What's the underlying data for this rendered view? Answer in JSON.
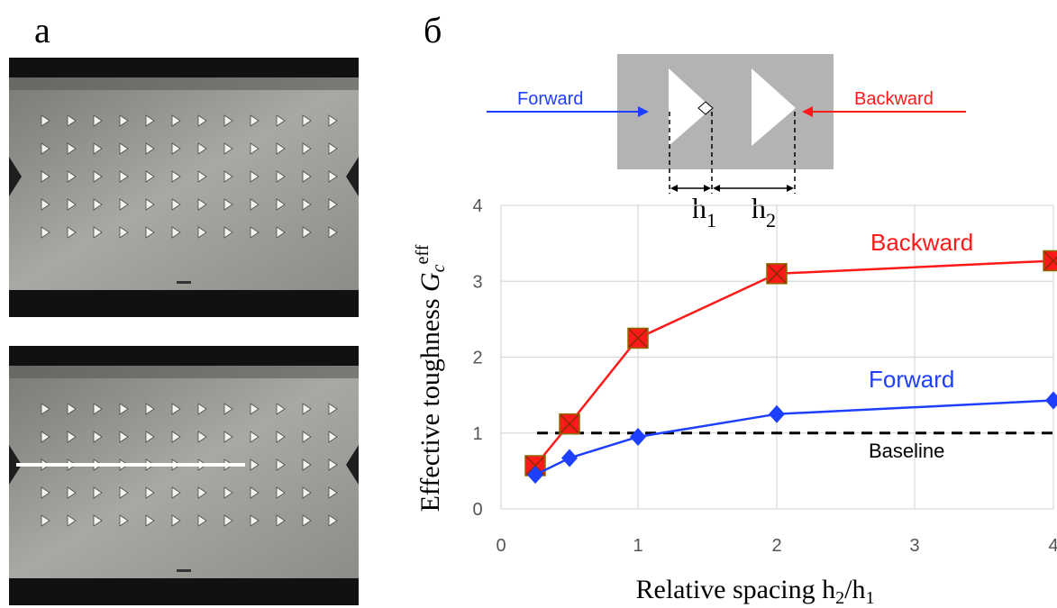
{
  "panels": {
    "left_label": "а",
    "right_label": "б"
  },
  "schematic": {
    "forward_label": "Forward",
    "backward_label": "Backward",
    "h1_main": "h",
    "h1_sub": "1",
    "h2_main": "h",
    "h2_sub": "2"
  },
  "photos": {
    "rows": 5,
    "cols": 12,
    "crack_row_index": 2
  },
  "colors": {
    "forward": "#1f3fff",
    "backward": "#ff1a1a",
    "baseline": "#000000",
    "grid": "#d9d9d9",
    "schematic_bg": "#b3b3b3"
  },
  "chart_data": {
    "type": "line",
    "x_tick_labels": [
      "0",
      "1",
      "2",
      "3",
      "4"
    ],
    "y_tick_labels": [
      "0",
      "1",
      "2",
      "3",
      "4"
    ],
    "xlim": [
      0,
      4
    ],
    "ylim": [
      0,
      4
    ],
    "grid": true,
    "ylabel_main": "Effective toughness ",
    "ylabel_symbol": "G",
    "ylabel_sub": "c",
    "ylabel_sup": "eff",
    "xlabel_main": "Relative spacing h",
    "xlabel_sub1": "2",
    "xlabel_slash": "/h",
    "xlabel_sub2": "1",
    "series": [
      {
        "name": "Backward",
        "x": [
          0.25,
          0.5,
          1,
          2,
          4
        ],
        "y": [
          0.57,
          1.12,
          2.25,
          3.1,
          3.27
        ]
      },
      {
        "name": "Forward",
        "x": [
          0.25,
          0.5,
          1,
          2,
          4
        ],
        "y": [
          0.45,
          0.67,
          0.95,
          1.25,
          1.43
        ]
      }
    ],
    "baseline": {
      "label": "Baseline",
      "y": 1.0
    }
  }
}
